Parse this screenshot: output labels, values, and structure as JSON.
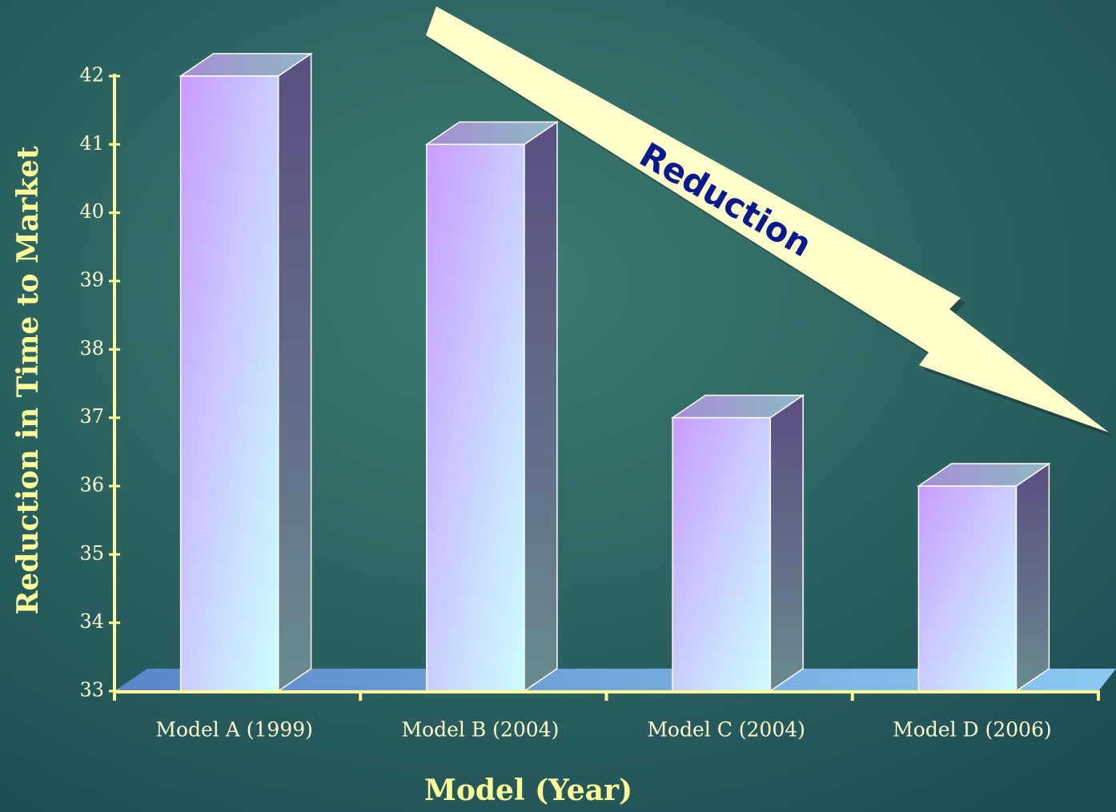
{
  "chart_data": {
    "type": "bar3d",
    "y_label": "Reduction in Time to Market",
    "x_label": "Model (Year)",
    "annotation": "Reduction",
    "categories": [
      "Model A (1999)",
      "Model B (2004)",
      "Model C (2004)",
      "Model D (2006)"
    ],
    "values": [
      42,
      41,
      37,
      36
    ],
    "color": "#c89cff",
    "ylim": [
      33,
      42
    ],
    "yticks": [
      33,
      34,
      35,
      36,
      37,
      38,
      39,
      40,
      41,
      42
    ]
  }
}
